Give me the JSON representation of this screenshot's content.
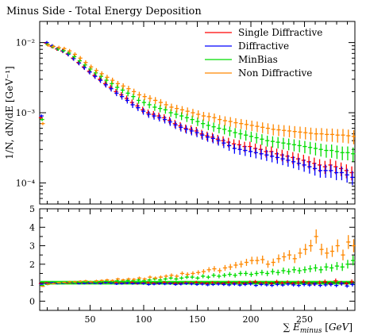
{
  "chart_data": [
    {
      "type": "scatter",
      "title": "Minus Side - Total Energy Deposition",
      "ylabel": "1/N, dN/dE [GeV⁻¹]",
      "xlim": [
        3,
        297
      ],
      "ylim": [
        5e-05,
        0.02
      ],
      "yscale": "log",
      "legend_position": "top-right",
      "ytick_labels": [
        {
          "value": 0.01,
          "label": "10⁻²"
        },
        {
          "value": 0.001,
          "label": "10⁻³"
        },
        {
          "value": 0.0001,
          "label": "10⁻⁴"
        }
      ],
      "x": [
        5,
        10,
        15,
        20,
        25,
        30,
        35,
        40,
        45,
        50,
        55,
        60,
        65,
        70,
        75,
        80,
        85,
        90,
        95,
        100,
        105,
        110,
        115,
        120,
        125,
        130,
        135,
        140,
        145,
        150,
        155,
        160,
        165,
        170,
        175,
        180,
        185,
        190,
        195,
        200,
        205,
        210,
        215,
        220,
        225,
        230,
        235,
        240,
        245,
        250,
        255,
        260,
        265,
        270,
        275,
        280,
        285,
        290,
        295
      ],
      "series": [
        {
          "name": "Single Diffractive",
          "color": "#ff0000",
          "values": [
            0.00085,
            0.0098,
            0.0088,
            0.0081,
            0.0076,
            0.0069,
            0.006,
            0.0052,
            0.0045,
            0.0039,
            0.0034,
            0.003,
            0.0026,
            0.0023,
            0.002,
            0.0018,
            0.0016,
            0.0014,
            0.00125,
            0.0011,
            0.001,
            0.00095,
            0.0009,
            0.00085,
            0.00078,
            0.0007,
            0.00065,
            0.0006,
            0.00058,
            0.00055,
            0.0005,
            0.00047,
            0.00045,
            0.00042,
            0.0004,
            0.00038,
            0.00036,
            0.00035,
            0.00033,
            0.00033,
            0.00031,
            0.0003,
            0.00028,
            0.00028,
            0.00026,
            0.00025,
            0.00024,
            0.00023,
            0.00022,
            0.00021,
            0.0002,
            0.00019,
            0.00018,
            0.00017,
            0.00018,
            0.00017,
            0.00016,
            0.00015,
            0.00014
          ]
        },
        {
          "name": "Diffractive",
          "color": "#0000ff",
          "values": [
            0.0009,
            0.01,
            0.009,
            0.0082,
            0.0076,
            0.0068,
            0.0059,
            0.0051,
            0.0044,
            0.0038,
            0.0033,
            0.0029,
            0.0025,
            0.0022,
            0.0019,
            0.0017,
            0.0015,
            0.0013,
            0.00118,
            0.00105,
            0.00095,
            0.0009,
            0.00085,
            0.0008,
            0.00074,
            0.00067,
            0.00062,
            0.00058,
            0.00055,
            0.00052,
            0.00048,
            0.00045,
            0.00043,
            0.0004,
            0.00037,
            0.00034,
            0.00031,
            0.0003,
            0.00029,
            0.00028,
            0.00027,
            0.00026,
            0.00025,
            0.00024,
            0.00023,
            0.00022,
            0.00021,
            0.0002,
            0.00019,
            0.00018,
            0.00017,
            0.00016,
            0.00015,
            0.00015,
            0.00015,
            0.00014,
            0.00014,
            0.00013,
            0.00012
          ]
        },
        {
          "name": "MinBias",
          "color": "#00dd00",
          "values": [
            0.0008,
            0.0094,
            0.0087,
            0.0081,
            0.0077,
            0.0071,
            0.0063,
            0.0055,
            0.0048,
            0.0042,
            0.0037,
            0.0033,
            0.0029,
            0.0026,
            0.0023,
            0.0021,
            0.0019,
            0.0017,
            0.0015,
            0.0014,
            0.0013,
            0.0012,
            0.00115,
            0.0011,
            0.001,
            0.00095,
            0.0009,
            0.00085,
            0.0008,
            0.00075,
            0.0007,
            0.00066,
            0.00063,
            0.0006,
            0.00058,
            0.00055,
            0.00052,
            0.0005,
            0.00048,
            0.00046,
            0.00044,
            0.00042,
            0.0004,
            0.00039,
            0.00038,
            0.00037,
            0.00036,
            0.00035,
            0.00034,
            0.00033,
            0.00032,
            0.00031,
            0.0003,
            0.00029,
            0.00029,
            0.00028,
            0.00027,
            0.00027,
            0.00026
          ]
        },
        {
          "name": "Non Diffractive",
          "color": "#ff8800",
          "values": [
            0.0007,
            0.0092,
            0.0088,
            0.0085,
            0.0082,
            0.0076,
            0.0068,
            0.006,
            0.0052,
            0.0045,
            0.004,
            0.0036,
            0.0032,
            0.0029,
            0.0026,
            0.0024,
            0.0022,
            0.002,
            0.0018,
            0.0017,
            0.0016,
            0.0015,
            0.0014,
            0.0013,
            0.0012,
            0.00115,
            0.0011,
            0.00105,
            0.001,
            0.00095,
            0.0009,
            0.00088,
            0.00085,
            0.0008,
            0.00077,
            0.00075,
            0.00072,
            0.0007,
            0.00068,
            0.00066,
            0.00064,
            0.00062,
            0.0006,
            0.00058,
            0.00057,
            0.00056,
            0.00055,
            0.00054,
            0.00053,
            0.00052,
            0.00051,
            0.0005,
            0.0005,
            0.00049,
            0.00049,
            0.00048,
            0.00048,
            0.00047,
            0.00046
          ]
        }
      ]
    },
    {
      "type": "scatter",
      "xlabel": "∑ E_minus [GeV]",
      "xlim": [
        3,
        297
      ],
      "ylim": [
        -0.5,
        5
      ],
      "xticks": [
        50,
        100,
        150,
        200,
        250
      ],
      "yticks": [
        0,
        1,
        2,
        3,
        4,
        5
      ],
      "x": [
        5,
        10,
        15,
        20,
        25,
        30,
        35,
        40,
        45,
        50,
        55,
        60,
        65,
        70,
        75,
        80,
        85,
        90,
        95,
        100,
        105,
        110,
        115,
        120,
        125,
        130,
        135,
        140,
        145,
        150,
        155,
        160,
        165,
        170,
        175,
        180,
        185,
        190,
        195,
        200,
        205,
        210,
        215,
        220,
        225,
        230,
        235,
        240,
        245,
        250,
        255,
        260,
        265,
        270,
        275,
        280,
        285,
        290,
        295
      ],
      "reference_band": {
        "center": 1.0,
        "half_width": 0.1,
        "color": "#00ee00"
      },
      "series": [
        {
          "name": "Single Diffractive",
          "color": "#ff0000",
          "values": [
            0.95,
            1.0,
            0.98,
            0.97,
            0.99,
            0.98,
            0.98,
            0.97,
            0.98,
            0.97,
            0.99,
            0.98,
            1.0,
            1.02,
            1.0,
            0.98,
            0.97,
            1.02,
            0.95,
            0.98,
            1.0,
            0.97,
            0.95,
            1.02,
            0.98,
            0.96,
            0.95,
            1.0,
            0.98,
            1.02,
            0.97,
            0.95,
            1.0,
            0.98,
            0.95,
            1.02,
            0.97,
            1.0,
            0.95,
            1.02,
            1.05,
            0.97,
            1.0,
            0.95,
            1.05,
            0.98,
            1.02,
            0.95,
            1.0,
            1.05,
            0.97,
            0.93,
            1.0,
            1.05,
            0.95,
            1.1,
            0.98,
            0.95,
            1.05
          ]
        },
        {
          "name": "Diffractive",
          "color": "#0000ff",
          "values": [
            0.92,
            0.95,
            1.0,
            0.95,
            0.97,
            1.02,
            0.98,
            0.95,
            0.96,
            0.98,
            0.97,
            0.95,
            1.0,
            0.98,
            0.93,
            0.95,
            0.98,
            0.95,
            0.97,
            0.95,
            0.9,
            0.92,
            0.95,
            0.93,
            0.95,
            0.9,
            0.92,
            0.95,
            0.93,
            0.9,
            0.92,
            0.88,
            0.9,
            0.92,
            0.9,
            0.88,
            0.92,
            0.87,
            0.9,
            0.93,
            0.85,
            0.9,
            0.88,
            0.85,
            0.9,
            0.87,
            0.92,
            0.88,
            0.85,
            0.9,
            0.87,
            0.92,
            0.85,
            0.88,
            0.9,
            0.85,
            0.95,
            0.82,
            0.9
          ]
        },
        {
          "name": "MinBias",
          "color": "#00dd00",
          "values": [
            0.85,
            0.9,
            0.95,
            0.98,
            1.0,
            1.02,
            1.0,
            1.02,
            1.03,
            1.05,
            1.02,
            1.05,
            1.08,
            1.05,
            1.1,
            1.08,
            1.12,
            1.1,
            1.15,
            1.1,
            1.15,
            1.2,
            1.15,
            1.2,
            1.25,
            1.2,
            1.25,
            1.3,
            1.3,
            1.25,
            1.35,
            1.3,
            1.4,
            1.35,
            1.4,
            1.45,
            1.4,
            1.5,
            1.5,
            1.45,
            1.5,
            1.55,
            1.5,
            1.6,
            1.55,
            1.65,
            1.6,
            1.7,
            1.65,
            1.7,
            1.75,
            1.8,
            1.7,
            1.85,
            1.8,
            1.9,
            1.85,
            2.0,
            2.2
          ]
        },
        {
          "name": "Non Diffractive",
          "color": "#ff8800",
          "values": [
            0.8,
            0.92,
            0.95,
            1.0,
            1.02,
            1.05,
            1.05,
            1.08,
            1.1,
            1.05,
            1.1,
            1.12,
            1.15,
            1.12,
            1.2,
            1.15,
            1.2,
            1.18,
            1.25,
            1.2,
            1.3,
            1.25,
            1.3,
            1.35,
            1.4,
            1.35,
            1.5,
            1.45,
            1.5,
            1.55,
            1.6,
            1.7,
            1.75,
            1.65,
            1.8,
            1.85,
            1.95,
            2.0,
            2.1,
            2.2,
            2.2,
            2.25,
            2.0,
            2.1,
            2.3,
            2.4,
            2.5,
            2.3,
            2.6,
            2.8,
            3.0,
            3.5,
            2.8,
            2.6,
            2.7,
            3.0,
            2.5,
            3.2,
            3.0
          ]
        }
      ]
    }
  ]
}
